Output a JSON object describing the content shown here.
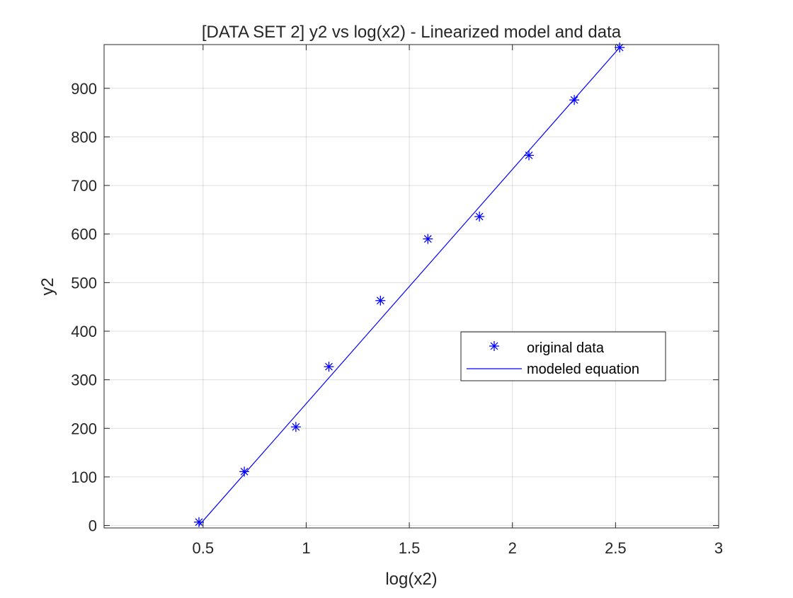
{
  "chart_data": {
    "type": "scatter",
    "title": "[DATA SET 2] y2 vs log(x2) - Linearized model and data",
    "xlabel": "log(x2)",
    "ylabel": "y2",
    "xlim": [
      0.02,
      3.0
    ],
    "ylim": [
      -5,
      990
    ],
    "xticks": [
      0.5,
      1,
      1.5,
      2,
      2.5,
      3
    ],
    "xtick_labels": [
      "0.5",
      "1",
      "1.5",
      "2",
      "2.5",
      "3"
    ],
    "yticks": [
      0,
      100,
      200,
      300,
      400,
      500,
      600,
      700,
      800,
      900
    ],
    "ytick_labels": [
      "0",
      "100",
      "200",
      "300",
      "400",
      "500",
      "600",
      "700",
      "800",
      "900"
    ],
    "grid": true,
    "legend_position": "center-right",
    "series": [
      {
        "name": "original data",
        "kind": "marker",
        "marker": "asterisk",
        "color": "#0000ff",
        "x": [
          0.48,
          0.7,
          0.95,
          1.11,
          1.36,
          1.59,
          1.84,
          2.08,
          2.3,
          2.52
        ],
        "y": [
          7,
          111,
          203,
          327,
          463,
          590,
          636,
          762,
          876,
          984
        ]
      },
      {
        "name": "modeled equation",
        "kind": "line",
        "color": "#0000ff",
        "x": [
          0.48,
          2.52
        ],
        "y": [
          0,
          984
        ]
      }
    ]
  }
}
